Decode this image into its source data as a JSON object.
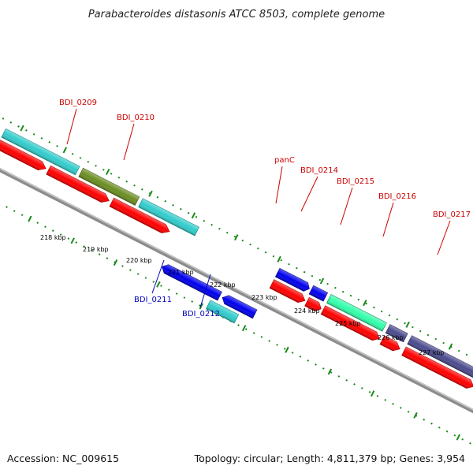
{
  "title": "Parabacteroides distasonis ATCC 8503, complete genome",
  "footer": {
    "accession": "Accession: NC_009615",
    "topology": "Topology: circular; Length: 4,811,379 bp; Genes: 3,954"
  },
  "colors": {
    "backbone": "#8c8c8c",
    "dots": "#1a8a1a",
    "label_forward": "#cc0000",
    "label_reverse": "#0000bb",
    "cds_red": "#ff0000",
    "cyan": "#33cccc",
    "olive": "#6b8e23",
    "blue": "#0000ee",
    "mint": "#33ffaa",
    "slate": "#4b4b8f"
  },
  "scale": {
    "tick_labels": [
      "218 kbp",
      "219 kbp",
      "220 kbp",
      "221 kbp",
      "222 kbp",
      "223 kbp",
      "224 kbp",
      "225 kbp",
      "226 kbp",
      "227 kbp"
    ]
  },
  "gene_labels": [
    {
      "text": "BDI_0209",
      "strand": "forward"
    },
    {
      "text": "BDI_0210",
      "strand": "forward"
    },
    {
      "text": "panC",
      "strand": "forward"
    },
    {
      "text": "BDI_0214",
      "strand": "forward"
    },
    {
      "text": "BDI_0215",
      "strand": "forward"
    },
    {
      "text": "BDI_0216",
      "strand": "forward"
    },
    {
      "text": "BDI_0217",
      "strand": "forward"
    },
    {
      "text": "BDI_0211",
      "strand": "reverse"
    },
    {
      "text": "BDI_0212",
      "strand": "reverse"
    }
  ]
}
